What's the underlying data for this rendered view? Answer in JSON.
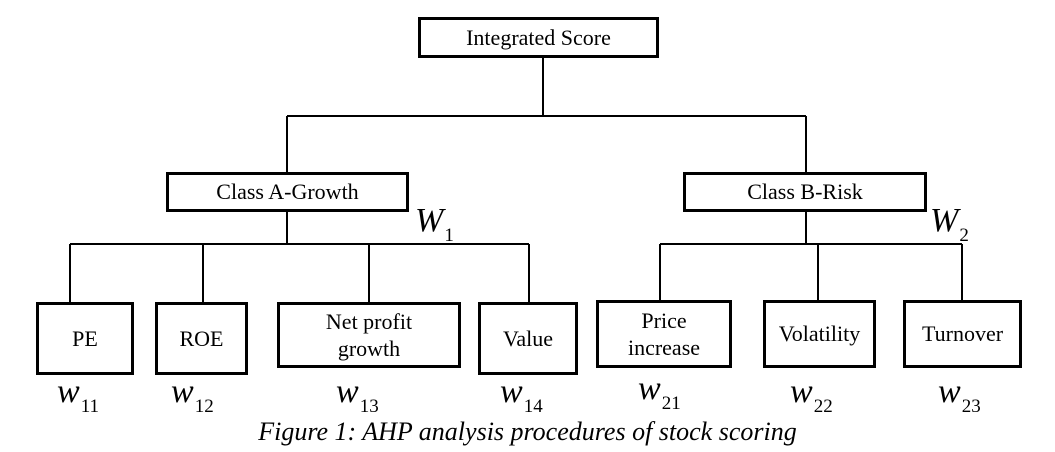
{
  "root": {
    "label": "Integrated Score"
  },
  "classes": [
    {
      "label": "Class A-Growth",
      "weight": {
        "symbol": "W",
        "sub": "1"
      }
    },
    {
      "label": "Class B-Risk",
      "weight": {
        "symbol": "W",
        "sub": "2"
      }
    }
  ],
  "indicators": [
    {
      "label": "PE",
      "weight": {
        "symbol": "w",
        "sub": "11"
      }
    },
    {
      "label": "ROE",
      "weight": {
        "symbol": "w",
        "sub": "12"
      }
    },
    {
      "label": "Net profit growth",
      "weight": {
        "symbol": "w",
        "sub": "13"
      }
    },
    {
      "label": "Value",
      "weight": {
        "symbol": "w",
        "sub": "14"
      }
    },
    {
      "label": "Price increase",
      "weight": {
        "symbol": "w",
        "sub": "21"
      }
    },
    {
      "label": "Volatility",
      "weight": {
        "symbol": "w",
        "sub": "22"
      }
    },
    {
      "label": "Turnover",
      "weight": {
        "symbol": "w",
        "sub": "23"
      }
    }
  ],
  "caption": "Figure 1: AHP analysis procedures of stock scoring"
}
